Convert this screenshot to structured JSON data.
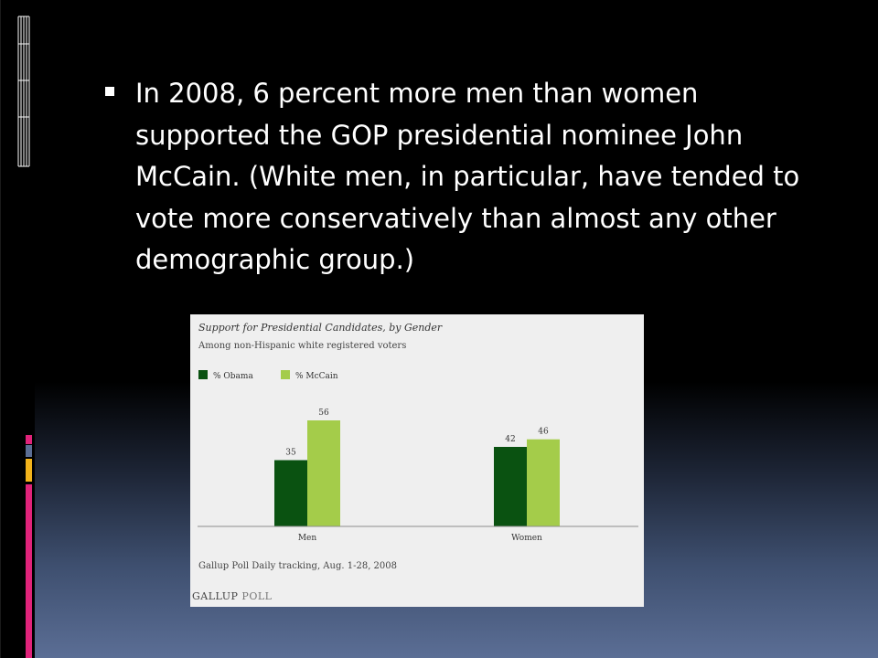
{
  "slide": {
    "bullet_text": "In 2008, 6 percent more men than women supported the GOP presidential nominee John McCain. (White men, in particular, have tended to vote more conservatively than almost any other demographic group.)"
  },
  "theme": {
    "deco_colors": [
      "#e0237a",
      "#5b6e95",
      "#f2b31b",
      "#e0237a"
    ]
  },
  "figure": {
    "logo": "GALLUP",
    "logo_suffix": "POLL",
    "colors": {
      "obama": "#0a5211",
      "mccain": "#a4cc4a",
      "axis": "#8c8c8c"
    }
  },
  "chart_data": {
    "type": "bar",
    "title": "Support for Presidential Candidates, by Gender",
    "subtitle": "Among non-Hispanic white registered voters",
    "categories": [
      "Men",
      "Women"
    ],
    "series": [
      {
        "name": "% Obama",
        "values": [
          35,
          42
        ]
      },
      {
        "name": "% McCain",
        "values": [
          56,
          46
        ]
      }
    ],
    "ylim": [
      0,
      56
    ],
    "data_labels": true,
    "grid": false,
    "legend_position": "top-left",
    "source": "Gallup Poll Daily tracking, Aug. 1-28, 2008"
  }
}
